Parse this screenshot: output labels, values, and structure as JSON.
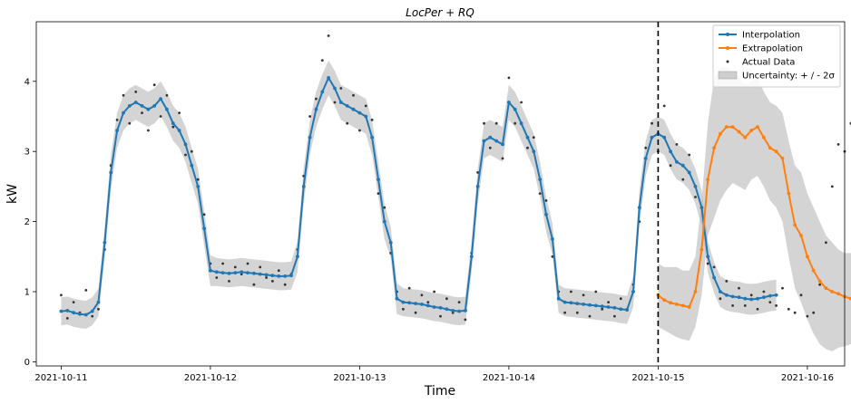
{
  "chart_data": {
    "type": "line",
    "title": "LocPer + RQ",
    "xlabel": "Time",
    "ylabel": "kW",
    "x_ticks": [
      "2021-10-11",
      "2021-10-12",
      "2021-10-13",
      "2021-10-14",
      "2021-10-15",
      "2021-10-16"
    ],
    "y_ticks": [
      "0",
      "1",
      "2",
      "3",
      "4"
    ],
    "xlim": [
      "2021-10-10T20:00",
      "2021-10-16T06:00"
    ],
    "ylim": [
      -0.06,
      4.85
    ],
    "grid": false,
    "legend_position": "top-right",
    "split_date": "2021-10-15",
    "uncertainty_band": "±2σ",
    "colors": {
      "interpolation": "#1f77b4",
      "extrapolation": "#ff7f0e",
      "actual": "#333333",
      "uncertainty": "#b0b0b0",
      "split_line": "#000000"
    },
    "legend": [
      {
        "key": "interpolation",
        "label": "Interpolation"
      },
      {
        "key": "extrapolation",
        "label": "Extrapolation"
      },
      {
        "key": "actual",
        "label": "Actual Data"
      },
      {
        "key": "uncertainty",
        "label": "Uncertainty: + / - 2σ"
      }
    ],
    "series": [
      {
        "name": "Interpolation",
        "unit": "kW",
        "x_start": "2021-10-11T00:00",
        "x_step_hours": 1,
        "values": [
          0.72,
          0.73,
          0.7,
          0.68,
          0.67,
          0.72,
          0.85,
          1.7,
          2.7,
          3.3,
          3.55,
          3.65,
          3.7,
          3.65,
          3.6,
          3.65,
          3.75,
          3.6,
          3.4,
          3.3,
          3.1,
          2.8,
          2.5,
          1.9,
          1.3,
          1.28,
          1.27,
          1.26,
          1.27,
          1.28,
          1.27,
          1.26,
          1.25,
          1.24,
          1.23,
          1.22,
          1.22,
          1.23,
          1.5,
          2.5,
          3.2,
          3.6,
          3.85,
          4.05,
          3.9,
          3.7,
          3.65,
          3.6,
          3.55,
          3.5,
          3.2,
          2.6,
          2.0,
          1.7,
          0.9,
          0.85,
          0.84,
          0.83,
          0.82,
          0.8,
          0.78,
          0.77,
          0.75,
          0.73,
          0.72,
          0.73,
          1.5,
          2.5,
          3.15,
          3.2,
          3.15,
          3.1,
          3.7,
          3.6,
          3.4,
          3.2,
          3.0,
          2.6,
          2.1,
          1.75,
          0.9,
          0.85,
          0.84,
          0.83,
          0.82,
          0.81,
          0.8,
          0.79,
          0.78,
          0.77,
          0.75,
          0.74,
          1.0,
          2.2,
          2.9,
          3.2,
          3.25,
          3.2,
          3.0,
          2.85,
          2.8,
          2.7,
          2.5,
          2.2,
          1.5,
          1.2,
          1.0,
          0.95,
          0.93,
          0.92,
          0.9,
          0.89,
          0.9,
          0.92,
          0.94,
          0.95
        ]
      },
      {
        "name": "Extrapolation",
        "unit": "kW",
        "x_start": "2021-10-15T00:00",
        "x_step_hours": 1,
        "values": [
          0.95,
          0.88,
          0.84,
          0.82,
          0.8,
          0.78,
          1.0,
          1.6,
          2.6,
          3.05,
          3.25,
          3.35,
          3.35,
          3.28,
          3.2,
          3.3,
          3.35,
          3.2,
          3.05,
          3.0,
          2.9,
          2.4,
          1.95,
          1.8,
          1.5,
          1.3,
          1.15,
          1.05,
          1.0,
          0.97,
          0.93,
          0.9,
          0.88,
          0.88,
          0.9,
          0.92,
          0.95,
          0.95
        ]
      }
    ],
    "uncertainty": {
      "interpolation_half_width": [
        0.2,
        0.2,
        0.2,
        0.2,
        0.2,
        0.2,
        0.2,
        0.22,
        0.25,
        0.25,
        0.25,
        0.25,
        0.25,
        0.25,
        0.25,
        0.25,
        0.25,
        0.25,
        0.25,
        0.25,
        0.25,
        0.25,
        0.25,
        0.25,
        0.22,
        0.2,
        0.2,
        0.2,
        0.2,
        0.2,
        0.2,
        0.2,
        0.2,
        0.2,
        0.2,
        0.2,
        0.2,
        0.2,
        0.22,
        0.25,
        0.25,
        0.25,
        0.25,
        0.25,
        0.25,
        0.25,
        0.25,
        0.25,
        0.25,
        0.25,
        0.25,
        0.25,
        0.25,
        0.22,
        0.22,
        0.2,
        0.2,
        0.2,
        0.2,
        0.2,
        0.2,
        0.2,
        0.2,
        0.2,
        0.2,
        0.2,
        0.22,
        0.25,
        0.25,
        0.25,
        0.25,
        0.25,
        0.25,
        0.25,
        0.25,
        0.25,
        0.25,
        0.25,
        0.25,
        0.22,
        0.2,
        0.2,
        0.2,
        0.2,
        0.2,
        0.2,
        0.2,
        0.2,
        0.2,
        0.2,
        0.2,
        0.2,
        0.22,
        0.25,
        0.25,
        0.25,
        0.25,
        0.25,
        0.25,
        0.25,
        0.25,
        0.25,
        0.25,
        0.25,
        0.22,
        0.22,
        0.22,
        0.22,
        0.22,
        0.22,
        0.22,
        0.22,
        0.22,
        0.22,
        0.22,
        0.22
      ],
      "extrapolation_upper": [
        1.4,
        1.35,
        1.35,
        1.35,
        1.3,
        1.3,
        1.5,
        2.3,
        3.4,
        4.05,
        4.2,
        4.2,
        4.15,
        4.05,
        3.95,
        4.0,
        4.05,
        3.85,
        3.7,
        3.65,
        3.55,
        3.15,
        2.8,
        2.7,
        2.4,
        2.2,
        2.0,
        1.8,
        1.7,
        1.6,
        1.55,
        1.55,
        1.55,
        1.55,
        1.55,
        1.55,
        1.58,
        1.6
      ],
      "extrapolation_lower": [
        0.5,
        0.45,
        0.4,
        0.35,
        0.32,
        0.3,
        0.5,
        0.95,
        1.8,
        2.05,
        2.3,
        2.45,
        2.55,
        2.5,
        2.45,
        2.6,
        2.65,
        2.5,
        2.3,
        2.2,
        2.0,
        1.5,
        1.05,
        0.85,
        0.6,
        0.4,
        0.25,
        0.18,
        0.15,
        0.2,
        0.22,
        0.25,
        0.25,
        0.25,
        0.25,
        0.25,
        0.28,
        0.3
      ]
    },
    "actual_data": {
      "x_start": "2021-10-11T00:00",
      "x_step_hours": 1,
      "values": [
        0.95,
        0.62,
        0.85,
        0.7,
        1.02,
        0.65,
        0.75,
        1.6,
        2.8,
        3.45,
        3.8,
        3.4,
        3.85,
        3.55,
        3.3,
        3.95,
        3.5,
        3.8,
        3.35,
        3.55,
        2.95,
        3.0,
        2.6,
        2.1,
        1.4,
        1.2,
        1.4,
        1.15,
        1.35,
        1.25,
        1.4,
        1.1,
        1.35,
        1.2,
        1.15,
        1.3,
        1.1,
        1.25,
        1.6,
        2.65,
        3.5,
        3.75,
        4.3,
        4.65,
        3.7,
        3.9,
        3.4,
        3.8,
        3.3,
        3.65,
        3.45,
        2.4,
        2.2,
        1.55,
        1.0,
        0.75,
        1.05,
        0.7,
        0.95,
        0.85,
        1.0,
        0.65,
        0.9,
        0.7,
        0.85,
        0.6,
        1.55,
        2.7,
        3.4,
        3.05,
        3.4,
        2.9,
        4.05,
        3.4,
        3.7,
        3.05,
        3.2,
        2.4,
        2.3,
        1.5,
        1.0,
        0.7,
        1.0,
        0.7,
        0.95,
        0.65,
        1.0,
        0.75,
        0.85,
        0.65,
        0.9,
        0.75,
        1.1,
        2.0,
        3.05,
        3.4,
        3.0,
        3.65,
        2.8,
        3.1,
        2.6,
        2.95,
        2.35,
        2.2,
        1.4,
        1.35,
        0.9,
        1.15,
        0.8,
        1.05,
        0.8,
        0.95,
        0.75,
        1.0,
        0.85,
        0.8,
        1.05,
        0.75,
        0.7,
        0.95,
        0.65,
        0.7,
        1.1,
        1.7,
        2.5,
        3.1,
        3.0,
        3.4,
        3.2,
        3.05,
        3.35,
        2.5,
        2.8,
        3.6,
        3.3,
        2.85,
        2.7,
        2.0,
        1.4,
        1.1,
        0.8,
        0.7,
        0.95,
        0.7,
        0.85,
        0.75,
        0.8,
        0.7,
        0.9,
        0.75,
        0.8,
        0.95,
        0.7
      ]
    }
  }
}
